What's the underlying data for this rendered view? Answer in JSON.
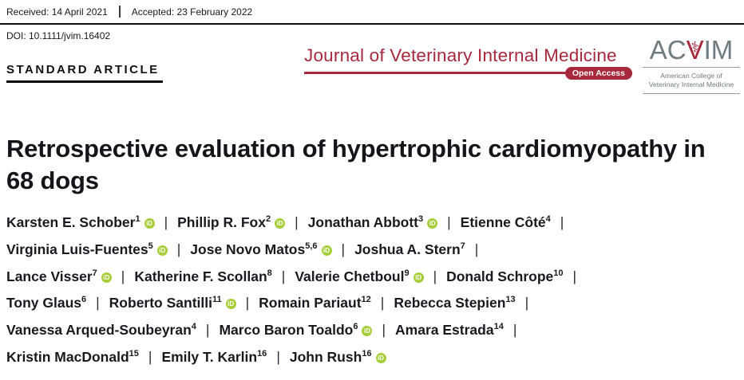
{
  "header": {
    "received": "Received: 14 April 2021",
    "accepted": "Accepted: 23 February 2022",
    "doi": "DOI: 10.1111/jvim.16402",
    "article_type": "STANDARD ARTICLE"
  },
  "journal": {
    "name": "Journal of Veterinary Internal Medicine",
    "open_access_badge": "Open Access",
    "brand_color": "#A8293B"
  },
  "acvim_logo": {
    "letters_prefix": "AC",
    "letters_v": "V",
    "letters_suffix": "IM",
    "caduceus_glyph": "⚕",
    "subtitle_line1": "American College of",
    "subtitle_line2": "Veterinary Internal Medicine",
    "gray_color": "#6E7B81"
  },
  "article": {
    "title_lines": [
      "Retrospective evaluation of hypertrophic cardiomyopathy in",
      "68 dogs"
    ],
    "author_separator": "|",
    "orcid_icon_label": "iD",
    "orcid_color": "#A6CE39",
    "authors": [
      {
        "name": "Karsten E. Schober",
        "sup": "1",
        "orcid": true,
        "break_after": false
      },
      {
        "name": "Phillip R. Fox",
        "sup": "2",
        "orcid": true,
        "break_after": false
      },
      {
        "name": "Jonathan Abbott",
        "sup": "3",
        "orcid": true,
        "break_after": false
      },
      {
        "name": "Etienne Côté",
        "sup": "4",
        "orcid": false,
        "break_after": true
      },
      {
        "name": "Virginia Luis-Fuentes",
        "sup": "5",
        "orcid": true,
        "break_after": false
      },
      {
        "name": "Jose Novo Matos",
        "sup": "5,6",
        "orcid": true,
        "break_after": false
      },
      {
        "name": "Joshua A. Stern",
        "sup": "7",
        "orcid": false,
        "break_after": true
      },
      {
        "name": "Lance Visser",
        "sup": "7",
        "orcid": true,
        "break_after": false
      },
      {
        "name": "Katherine F. Scollan",
        "sup": "8",
        "orcid": false,
        "break_after": false
      },
      {
        "name": "Valerie Chetboul",
        "sup": "9",
        "orcid": true,
        "break_after": false
      },
      {
        "name": "Donald Schrope",
        "sup": "10",
        "orcid": false,
        "break_after": true
      },
      {
        "name": "Tony Glaus",
        "sup": "6",
        "orcid": false,
        "break_after": false
      },
      {
        "name": "Roberto Santilli",
        "sup": "11",
        "orcid": true,
        "break_after": false
      },
      {
        "name": "Romain Pariaut",
        "sup": "12",
        "orcid": false,
        "break_after": false
      },
      {
        "name": "Rebecca Stepien",
        "sup": "13",
        "orcid": false,
        "break_after": true
      },
      {
        "name": "Vanessa Arqued-Soubeyran",
        "sup": "4",
        "orcid": false,
        "break_after": false
      },
      {
        "name": "Marco Baron Toaldo",
        "sup": "6",
        "orcid": true,
        "break_after": false
      },
      {
        "name": "Amara Estrada",
        "sup": "14",
        "orcid": false,
        "break_after": true
      },
      {
        "name": "Kristin MacDonald",
        "sup": "15",
        "orcid": false,
        "break_after": false
      },
      {
        "name": "Emily T. Karlin",
        "sup": "16",
        "orcid": false,
        "break_after": false
      },
      {
        "name": "John Rush",
        "sup": "16",
        "orcid": true,
        "break_after": false
      }
    ]
  }
}
